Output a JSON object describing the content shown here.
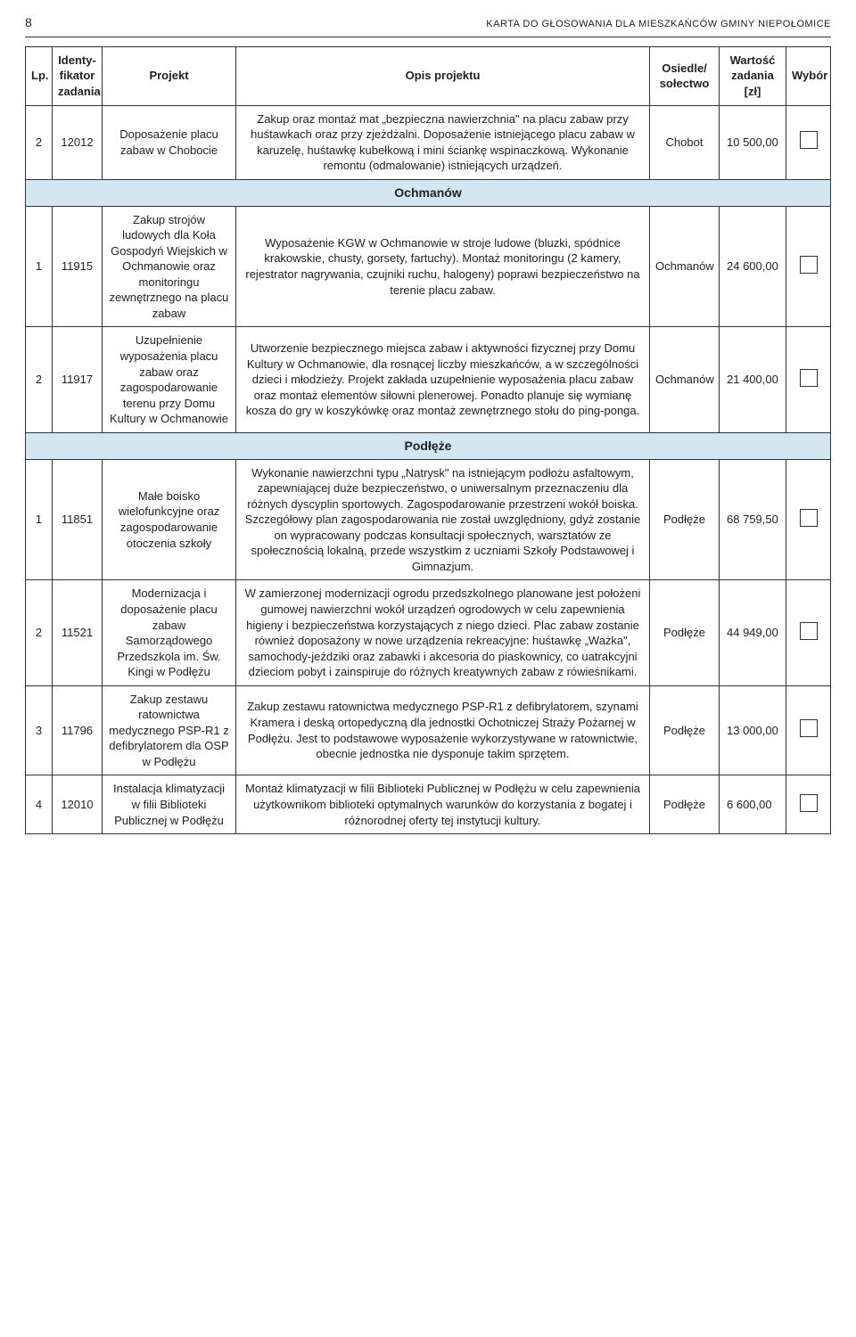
{
  "page_number": "8",
  "document_title": "KARTA DO GŁOSOWANIA DLA MIESZKAŃCÓW GMINY NIEPOŁOMICE",
  "columns": {
    "lp": "Lp.",
    "id": "Identy-fikator zadania",
    "projekt": "Projekt",
    "opis": "Opis projektu",
    "osiedle": "Osiedle/ sołectwo",
    "wartosc": "Wartość zadania [zł]",
    "wybor": "Wybór"
  },
  "sections": {
    "ochmanow": "Ochmanów",
    "podleze": "Podłęże"
  },
  "rows": [
    {
      "lp": "2",
      "id": "12012",
      "projekt": "Doposażenie placu zabaw w Chobocie",
      "opis": "Zakup oraz montaż mat „bezpieczna nawierzchnia\" na placu zabaw przy huśtawkach oraz przy zjeżdżalni. Doposażenie istniejącego placu zabaw w karuzelę, huśtawkę kubełkową i mini ściankę wspinaczkową. Wykonanie remontu (odmalowanie) istniejących urządzeń.",
      "osiedle": "Chobot",
      "wartosc": "10 500,00"
    },
    {
      "lp": "1",
      "id": "11915",
      "projekt": "Zakup strojów ludowych dla Koła Gospodyń Wiejskich w Ochmanowie oraz monitoringu zewnętrznego na placu zabaw",
      "opis": "Wyposażenie KGW w Ochmanowie w stroje ludowe (bluzki, spódnice krakowskie, chusty, gorsety, fartuchy). Montaż monitoringu (2 kamery, rejestrator nagrywania, czujniki ruchu, halogeny) poprawi bezpieczeństwo na terenie placu zabaw.",
      "osiedle": "Ochmanów",
      "wartosc": "24 600,00"
    },
    {
      "lp": "2",
      "id": "11917",
      "projekt": "Uzupełnienie wyposażenia placu zabaw oraz zagospodarowanie terenu przy Domu Kultury w Ochmanowie",
      "opis": "Utworzenie bezpiecznego miejsca zabaw i aktywności fizycznej przy Domu Kultury w Ochmanowie, dla rosnącej liczby mieszkańców, a w szczególności dzieci i młodzieży. Projekt zakłada uzupełnienie wyposażenia placu zabaw oraz montaż elementów siłowni plenerowej. Ponadto planuje się wymianę kosza do gry w koszykówkę oraz montaż zewnętrznego stołu do ping-ponga.",
      "osiedle": "Ochmanów",
      "wartosc": "21 400,00"
    },
    {
      "lp": "1",
      "id": "11851",
      "projekt": "Małe boisko wielofunkcyjne oraz zagospodarowanie otoczenia szkoły",
      "opis": "Wykonanie nawierzchni typu „Natrysk\" na istniejącym podłożu asfaltowym, zapewniającej duże bezpieczeństwo, o uniwersalnym przeznaczeniu dla różnych dyscyplin sportowych. Zagospodarowanie przestrzeni wokół boiska. Szczegółowy plan zagospodarowania nie został uwzględniony, gdyż zostanie on wypracowany podczas konsultacji społecznych, warsztatów ze społecznością lokalną, przede wszystkim z uczniami Szkoły Podstawowej i Gimnazjum.",
      "osiedle": "Podłęże",
      "wartosc": "68 759,50"
    },
    {
      "lp": "2",
      "id": "11521",
      "projekt": "Modernizacja i doposażenie placu zabaw Samorządowego Przedszkola im. Św. Kingi w Podłężu",
      "opis": "W zamierzonej modernizacji ogrodu przedszkolnego planowane jest położeni gumowej nawierzchni wokół urządzeń ogrodowych w celu zapewnienia higieny i bezpieczeństwa korzystających z niego dzieci. Plac zabaw zostanie również doposażony w nowe urządzenia rekreacyjne: huśtawkę „Ważka\", samochody-jeździki oraz zabawki i akcesoria do piaskownicy, co uatrakcyjni dzieciom pobyt i zainspiruje do różnych kreatywnych zabaw z rówieśnikami.",
      "osiedle": "Podłęże",
      "wartosc": "44 949,00"
    },
    {
      "lp": "3",
      "id": "11796",
      "projekt": "Zakup zestawu ratownictwa medycznego PSP-R1 z defibrylatorem dla OSP w Podłężu",
      "opis": "Zakup zestawu ratownictwa medycznego PSP-R1 z defibrylatorem, szynami Kramera i deską ortopedyczną dla jednostki Ochotniczej Straży Pożarnej w Podłężu. Jest to podstawowe wyposażenie wykorzystywane w ratownictwie, obecnie jednostka nie dysponuje takim sprzętem.",
      "osiedle": "Podłęże",
      "wartosc": "13 000,00"
    },
    {
      "lp": "4",
      "id": "12010",
      "projekt": "Instalacja klimatyzacji w filii Biblioteki Publicznej w Podłężu",
      "opis": "Montaż klimatyzacji w filii Biblioteki Publicznej w Podłężu w celu zapewnienia użytkownikom biblioteki optymalnych warunków do korzystania z bogatej i różnorodnej oferty tej instytucji kultury.",
      "osiedle": "Podłęże",
      "wartosc": "6 600,00"
    }
  ]
}
